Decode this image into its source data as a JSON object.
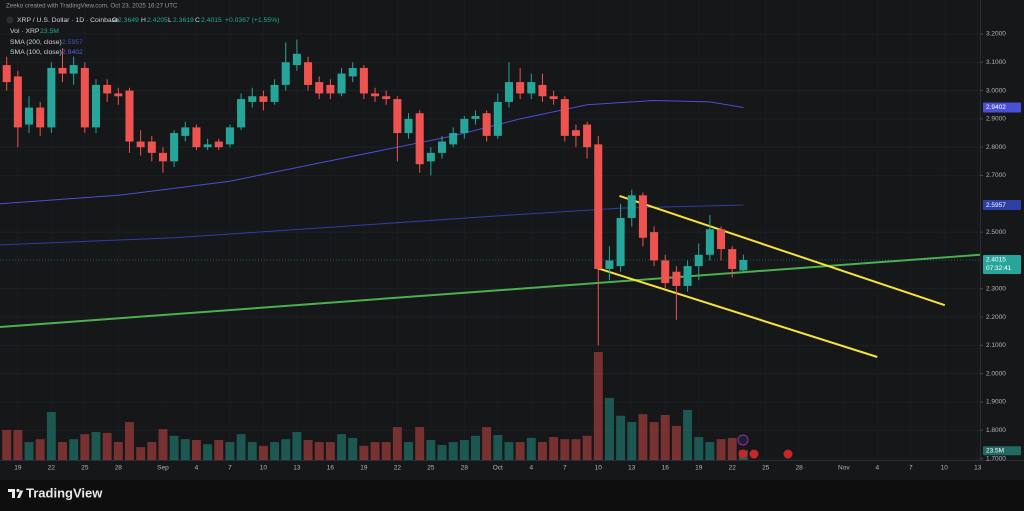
{
  "header": {
    "credit": "Zeeko created with TradingView.com, Oct 23, 2025 16:27 UTC",
    "symbol": "XRP / U.S. Dollar · 1D · Coinbase",
    "ohlc_labels": [
      "O",
      "H",
      "L",
      "C"
    ],
    "change": "+0.0367 (+1.55%)",
    "countdown": "07:32:41"
  },
  "footer": {
    "brand": "TradingView"
  },
  "chart_data": {
    "type": "candlestick",
    "up_color": "#26a69a",
    "down_color": "#ef5350",
    "xlim": [
      -0.6,
      87.2
    ],
    "xticks": [
      {
        "value": 1,
        "label": "19"
      },
      {
        "value": 4,
        "label": "22"
      },
      {
        "value": 7,
        "label": "25"
      },
      {
        "value": 10,
        "label": "28"
      },
      {
        "value": 14,
        "label": "Sep"
      },
      {
        "value": 17,
        "label": "4"
      },
      {
        "value": 20,
        "label": "7"
      },
      {
        "value": 23,
        "label": "10"
      },
      {
        "value": 26,
        "label": "13"
      },
      {
        "value": 29,
        "label": "16"
      },
      {
        "value": 32,
        "label": "19"
      },
      {
        "value": 35,
        "label": "22"
      },
      {
        "value": 38,
        "label": "25"
      },
      {
        "value": 41,
        "label": "28"
      },
      {
        "value": 44,
        "label": "Oct"
      },
      {
        "value": 47,
        "label": "4"
      },
      {
        "value": 50,
        "label": "7"
      },
      {
        "value": 53,
        "label": "10"
      },
      {
        "value": 56,
        "label": "13"
      },
      {
        "value": 59,
        "label": "16"
      },
      {
        "value": 62,
        "label": "19"
      },
      {
        "value": 65,
        "label": "22"
      },
      {
        "value": 68,
        "label": "25"
      },
      {
        "value": 71,
        "label": "28"
      },
      {
        "value": 75,
        "label": "Nov"
      },
      {
        "value": 78,
        "label": "4"
      },
      {
        "value": 81,
        "label": "7"
      },
      {
        "value": 84,
        "label": "10"
      },
      {
        "value": 87,
        "label": "13"
      }
    ],
    "ylim": [
      1.695,
      3.32
    ],
    "yticks": [
      {
        "value": 3.2,
        "label": "3.2000"
      },
      {
        "value": 3.1,
        "label": "3.1000"
      },
      {
        "value": 3.0,
        "label": "3.0000"
      },
      {
        "value": 2.9,
        "label": "2.9000"
      },
      {
        "value": 2.8,
        "label": "2.8000"
      },
      {
        "value": 2.7,
        "label": "2.7000"
      },
      {
        "value": 2.5,
        "label": "2.5000"
      },
      {
        "value": 2.3,
        "label": "2.3000"
      },
      {
        "value": 2.2,
        "label": "2.2000"
      },
      {
        "value": 2.1,
        "label": "2.1000"
      },
      {
        "value": 2.0,
        "label": "2.0000"
      },
      {
        "value": 1.9,
        "label": "1.9000"
      },
      {
        "value": 1.8,
        "label": "1.8000"
      },
      {
        "value": 1.7,
        "label": "1.7000"
      }
    ],
    "grid": true,
    "candles": {
      "open": [
        3.09,
        3.05,
        2.88,
        2.94,
        2.87,
        3.08,
        3.06,
        3.08,
        2.87,
        3.02,
        2.99,
        3.0,
        2.82,
        2.82,
        2.78,
        2.75,
        2.84,
        2.87,
        2.8,
        2.82,
        2.81,
        2.87,
        2.96,
        2.98,
        2.96,
        3.02,
        3.09,
        3.1,
        3.03,
        3.02,
        2.99,
        3.05,
        3.08,
        2.99,
        2.98,
        2.97,
        2.85,
        2.92,
        2.75,
        2.78,
        2.81,
        2.85,
        2.9,
        2.92,
        2.84,
        2.96,
        3.03,
        2.99,
        3.02,
        2.98,
        2.97,
        2.86,
        2.88,
        2.81,
        2.37,
        2.38,
        2.55,
        2.63,
        2.5,
        2.4,
        2.36,
        2.31,
        2.38,
        2.42,
        2.51,
        2.44,
        2.3649
      ],
      "high": [
        3.12,
        3.07,
        2.98,
        2.96,
        3.1,
        3.15,
        3.12,
        3.1,
        3.04,
        3.04,
        3.01,
        3.01,
        2.86,
        2.84,
        2.8,
        2.86,
        2.89,
        2.88,
        2.83,
        2.83,
        2.88,
        2.99,
        3.01,
        3.0,
        3.04,
        3.17,
        3.18,
        3.12,
        3.05,
        3.04,
        3.08,
        3.1,
        3.09,
        3.01,
        3.0,
        2.98,
        2.92,
        2.93,
        2.8,
        2.84,
        2.87,
        2.91,
        2.93,
        2.93,
        2.99,
        3.1,
        3.08,
        3.06,
        3.06,
        3.0,
        2.98,
        2.88,
        2.89,
        2.84,
        2.45,
        2.6,
        2.65,
        2.64,
        2.52,
        2.42,
        2.38,
        2.4,
        2.46,
        2.56,
        2.52,
        2.45,
        2.4205
      ],
      "low": [
        3.0,
        2.8,
        2.85,
        2.84,
        2.85,
        3.03,
        3.02,
        2.85,
        2.85,
        2.96,
        2.95,
        2.78,
        2.77,
        2.75,
        2.71,
        2.73,
        2.82,
        2.79,
        2.79,
        2.79,
        2.8,
        2.86,
        2.94,
        2.93,
        2.95,
        3.0,
        3.07,
        3.0,
        2.97,
        2.97,
        2.98,
        3.03,
        2.97,
        2.96,
        2.95,
        2.75,
        2.83,
        2.71,
        2.7,
        2.76,
        2.8,
        2.83,
        2.88,
        2.82,
        2.83,
        2.94,
        2.97,
        2.97,
        2.96,
        2.95,
        2.82,
        2.8,
        2.76,
        2.1,
        2.33,
        2.36,
        2.52,
        2.45,
        2.38,
        2.3,
        2.19,
        2.29,
        2.33,
        2.4,
        2.4,
        2.34,
        2.3619
      ],
      "close": [
        3.03,
        2.87,
        2.94,
        2.87,
        3.08,
        3.06,
        3.09,
        2.87,
        3.02,
        2.99,
        2.98,
        2.82,
        2.8,
        2.78,
        2.75,
        2.85,
        2.87,
        2.8,
        2.81,
        2.8,
        2.87,
        2.97,
        2.98,
        2.96,
        3.02,
        3.1,
        3.13,
        3.02,
        2.99,
        2.99,
        3.06,
        3.08,
        2.99,
        2.98,
        2.97,
        2.85,
        2.9,
        2.74,
        2.78,
        2.82,
        2.85,
        2.9,
        2.91,
        2.84,
        2.96,
        3.03,
        2.99,
        3.03,
        2.98,
        2.97,
        2.84,
        2.84,
        2.8,
        2.37,
        2.4,
        2.55,
        2.63,
        2.48,
        2.4,
        2.32,
        2.31,
        2.38,
        2.42,
        2.51,
        2.44,
        2.37,
        2.4015
      ]
    },
    "volume": {
      "name": "Vol · XRP",
      "last_label": "23.5M",
      "values": [
        72,
        72,
        43,
        50,
        115,
        43,
        50,
        62,
        67,
        65,
        43,
        91,
        31,
        43,
        74,
        58,
        50,
        48,
        38,
        48,
        43,
        62,
        43,
        34,
        43,
        50,
        67,
        48,
        43,
        43,
        62,
        53,
        34,
        43,
        43,
        79,
        43,
        79,
        48,
        36,
        43,
        48,
        58,
        79,
        60,
        43,
        43,
        53,
        43,
        55,
        50,
        50,
        58,
        259,
        149,
        106,
        91,
        110,
        91,
        108,
        82,
        120,
        55,
        43,
        50,
        53,
        23.5
      ]
    },
    "sma": [
      {
        "name": "SMA (200, close)",
        "color": "#2b3fa6",
        "x": [
          -0.6,
          15,
          30,
          45,
          55,
          66
        ],
        "values": [
          2.455,
          2.48,
          2.52,
          2.56,
          2.585,
          2.5957
        ]
      },
      {
        "name": "SMA (100, close)",
        "color": "#4a4fd8",
        "x": [
          -0.6,
          10,
          20,
          30,
          40,
          46,
          52,
          58,
          63,
          66
        ],
        "values": [
          2.6,
          2.63,
          2.68,
          2.76,
          2.84,
          2.9,
          2.95,
          2.965,
          2.96,
          2.9402
        ]
      }
    ],
    "trendlines": [
      {
        "color": "#4caf50",
        "x": [
          -0.6,
          87.2
        ],
        "values": [
          2.165,
          2.42
        ]
      },
      {
        "color": "#f5e23b",
        "x": [
          54.9,
          84.05
        ],
        "values": [
          2.628,
          2.242
        ]
      },
      {
        "color": "#f5e23b",
        "x": [
          52.9,
          78.0
        ],
        "values": [
          2.373,
          2.059
        ]
      }
    ]
  }
}
